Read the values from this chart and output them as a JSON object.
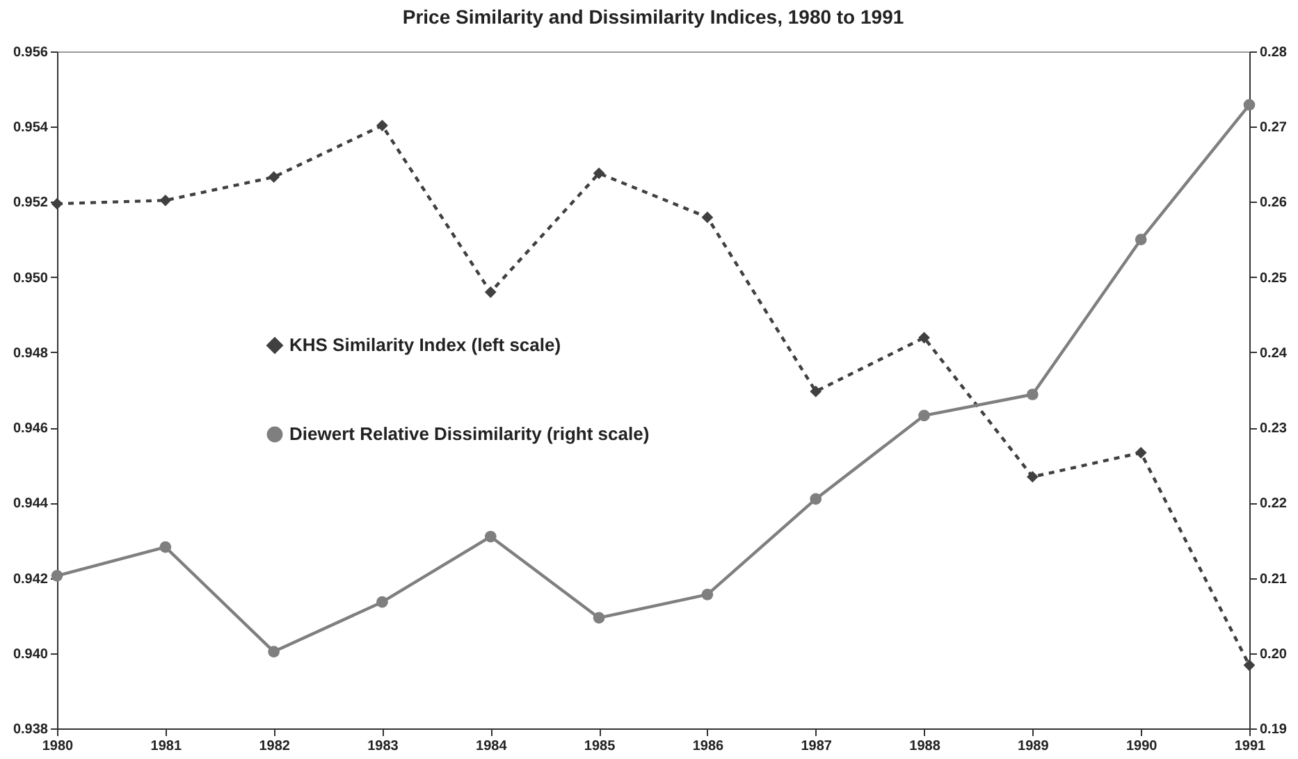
{
  "chart_data": {
    "type": "line",
    "title": "Price Similarity and Dissimilarity Indices, 1980 to 1991",
    "categories": [
      "1980",
      "1981",
      "1982",
      "1983",
      "1984",
      "1985",
      "1986",
      "1987",
      "1988",
      "1989",
      "1990",
      "1991"
    ],
    "series": [
      {
        "name": "KHS Similarity Index (left scale)",
        "color": "#404040",
        "marker": "diamond",
        "line_style": "dashed",
        "values": [
          0.95195,
          0.95204,
          0.95266,
          0.95403,
          0.9496,
          0.95276,
          0.95159,
          0.94696,
          0.94839,
          0.94469,
          0.94533,
          0.93968
        ]
      },
      {
        "name": "Diewert Relative Dissimilarity (right scale)",
        "color": "#7f7f7f",
        "marker": "circle",
        "line_style": "solid",
        "axis": "y2",
        "values": [
          0.2103,
          0.2141,
          0.2002,
          0.2068,
          0.2155,
          0.2047,
          0.2078,
          0.2205,
          0.2316,
          0.2344,
          0.255,
          0.2729
        ]
      }
    ],
    "ylim": [
      0.938,
      0.956
    ],
    "yticks": [
      0.938,
      0.942,
      0.944,
      0.946,
      0.948,
      {
        "value": 0.94,
        "label": "0.940"
      },
      0.952,
      0.954,
      0.956,
      {
        "value": 0.95,
        "label": "0.950"
      }
    ],
    "y2lim": [
      0.19,
      0.28
    ],
    "y2ticks": [
      0.19,
      {
        "value": 0.2,
        "label": "0.20"
      },
      0.21,
      0.22,
      0.23,
      0.24,
      0.25,
      0.26,
      0.27,
      0.28
    ],
    "grid": false,
    "legend": "center"
  }
}
